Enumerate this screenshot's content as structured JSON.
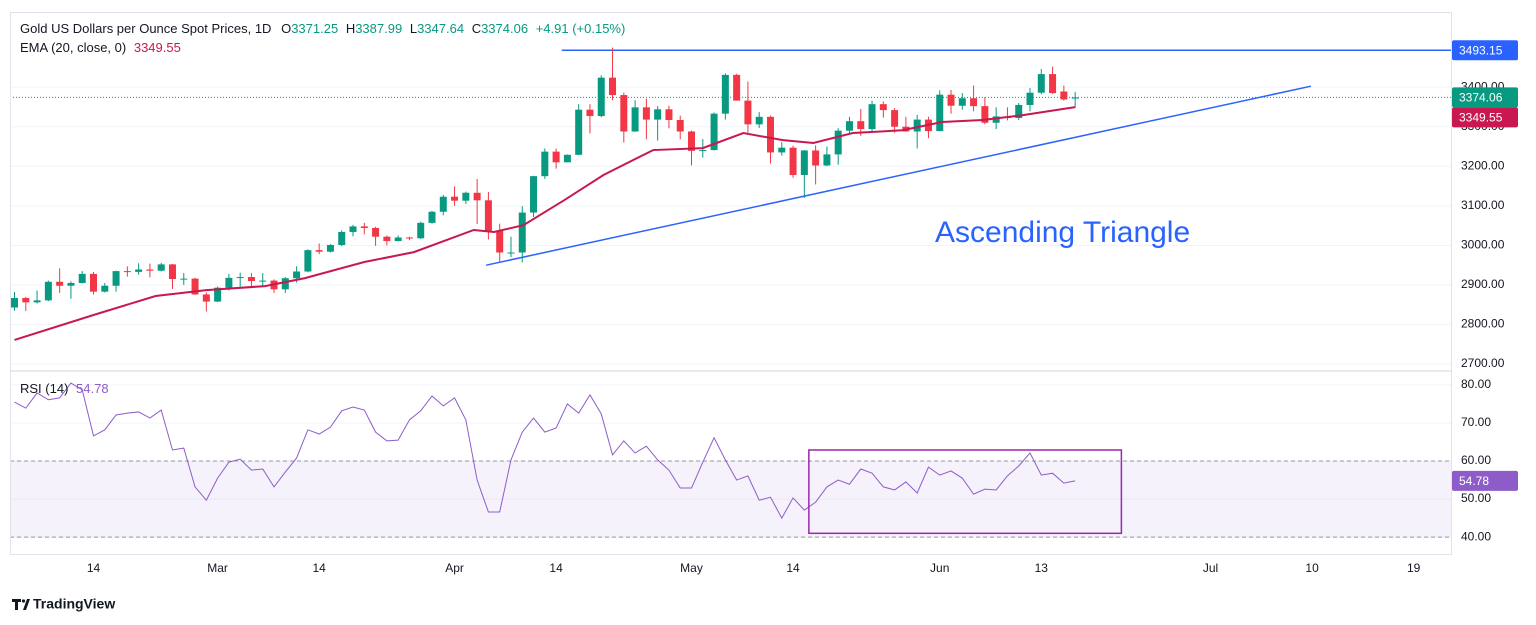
{
  "chart_data": {
    "type": "candlestick",
    "title": "Gold US Dollars per Ounce Spot Prices, 1D",
    "ohlc_keys": [
      "O",
      "H",
      "L",
      "C"
    ],
    "change_label": "+4.91 (+0.15%)",
    "up_color": "#089981",
    "down_color": "#f23645",
    "open": [
      2843,
      2867,
      2856,
      2861,
      2908,
      2898,
      2905,
      2928,
      2883,
      2898,
      2935,
      2933,
      2939,
      2936,
      2952,
      2915,
      2916,
      2876,
      2858,
      2893,
      2918,
      2920,
      2910,
      2911,
      2889,
      2917,
      2934,
      2988,
      2984,
      3001,
      3034,
      3048,
      3044,
      3022,
      3011,
      3020,
      3018,
      3057,
      3085,
      3123,
      3113,
      3133,
      3114,
      3037,
      2982,
      2982,
      3083,
      3175,
      3237,
      3210,
      3229,
      3343,
      3327,
      3424,
      3380,
      3288,
      3349,
      3318,
      3344,
      3317,
      3288,
      3239,
      3241,
      3333,
      3431,
      3366,
      3306,
      3325,
      3235,
      3247,
      3178,
      3240,
      3202,
      3230,
      3290,
      3314,
      3294,
      3357,
      3342,
      3300,
      3288,
      3318,
      3289,
      3381,
      3353,
      3372,
      3352,
      3310,
      3326,
      3322,
      3355,
      3386,
      3433,
      3389,
      3371.25
    ],
    "high": [
      2882,
      2870,
      2886,
      2911,
      2942,
      2909,
      2935,
      2933,
      2905,
      2936,
      2947,
      2955,
      2954,
      2956,
      2953,
      2930,
      2918,
      2881,
      2896,
      2928,
      2931,
      2930,
      2930,
      2914,
      2920,
      2947,
      2990,
      3005,
      3003,
      3038,
      3052,
      3057,
      3047,
      3025,
      3025,
      3022,
      3060,
      3087,
      3128,
      3149,
      3136,
      3168,
      3135,
      3055,
      3022,
      3099,
      3176,
      3245,
      3245,
      3230,
      3357,
      3357,
      3430,
      3500,
      3386,
      3367,
      3371,
      3352,
      3353,
      3328,
      3290,
      3269,
      3336,
      3435,
      3434,
      3414,
      3337,
      3328,
      3261,
      3252,
      3241,
      3253,
      3250,
      3296,
      3325,
      3345,
      3366,
      3364,
      3347,
      3325,
      3330,
      3325,
      3392,
      3393,
      3385,
      3404,
      3375,
      3349,
      3349,
      3360,
      3398,
      3446,
      3452,
      3404,
      3387.99
    ],
    "low": [
      2835,
      2834,
      2853,
      2859,
      2880,
      2865,
      2904,
      2876,
      2881,
      2883,
      2921,
      2926,
      2919,
      2934,
      2890,
      2900,
      2875,
      2833,
      2857,
      2886,
      2895,
      2895,
      2894,
      2880,
      2880,
      2906,
      2932,
      2978,
      2982,
      2998,
      3023,
      3028,
      2999,
      3000,
      3010,
      3013,
      3016,
      3055,
      3076,
      3100,
      3105,
      3054,
      3015,
      2957,
      2970,
      2957,
      3072,
      3168,
      3194,
      3210,
      3228,
      3283,
      3324,
      3367,
      3260,
      3287,
      3268,
      3265,
      3296,
      3268,
      3202,
      3222,
      3240,
      3318,
      3366,
      3285,
      3297,
      3207,
      3227,
      3171,
      3120,
      3154,
      3200,
      3204,
      3283,
      3277,
      3287,
      3323,
      3285,
      3287,
      3245,
      3271,
      3289,
      3333,
      3343,
      3339,
      3306,
      3294,
      3316,
      3317,
      3339,
      3382,
      3383,
      3366,
      3347.64
    ],
    "close": [
      2867,
      2856,
      2861,
      2908,
      2898,
      2905,
      2928,
      2883,
      2898,
      2935,
      2933,
      2939,
      2936,
      2952,
      2915,
      2916,
      2876,
      2858,
      2893,
      2918,
      2920,
      2910,
      2911,
      2889,
      2917,
      2934,
      2988,
      2984,
      3001,
      3034,
      3048,
      3044,
      3022,
      3011,
      3020,
      3018,
      3057,
      3085,
      3123,
      3113,
      3133,
      3114,
      3037,
      2982,
      2982,
      3083,
      3175,
      3237,
      3210,
      3229,
      3343,
      3327,
      3424,
      3380,
      3288,
      3349,
      3318,
      3344,
      3317,
      3288,
      3239,
      3241,
      3333,
      3431,
      3366,
      3306,
      3325,
      3235,
      3247,
      3178,
      3240,
      3202,
      3230,
      3290,
      3314,
      3294,
      3357,
      3342,
      3300,
      3288,
      3318,
      3289,
      3381,
      3353,
      3372,
      3352,
      3310,
      3326,
      3322,
      3355,
      3386,
      3433,
      3385,
      3369,
      3374.06
    ],
    "xlim": [
      -0.4,
      127.4
    ],
    "xticks": [
      {
        "value": 7,
        "label": "14"
      },
      {
        "value": 18,
        "label": "Mar"
      },
      {
        "value": 27,
        "label": "14"
      },
      {
        "value": 39,
        "label": "Apr"
      },
      {
        "value": 48,
        "label": "14"
      },
      {
        "value": 60,
        "label": "May"
      },
      {
        "value": 69,
        "label": "14"
      },
      {
        "value": 82,
        "label": "Jun"
      },
      {
        "value": 91,
        "label": "13"
      },
      {
        "value": 106,
        "label": "Jul"
      },
      {
        "value": 115,
        "label": "10"
      },
      {
        "value": 124,
        "label": "19"
      }
    ],
    "ylim": [
      2685,
      3590
    ],
    "yticks": [
      {
        "value": 2700,
        "label": "2700.00"
      },
      {
        "value": 2800,
        "label": "2800.00"
      },
      {
        "value": 2900,
        "label": "2900.00"
      },
      {
        "value": 3000,
        "label": "3000.00"
      },
      {
        "value": 3100,
        "label": "3100.00"
      },
      {
        "value": 3200,
        "label": "3200.00"
      },
      {
        "value": 3300,
        "label": "3300.00"
      },
      {
        "value": 3400,
        "label": "3400.00"
      }
    ],
    "grid": true,
    "ema": {
      "name": "EMA (20, close, 0)",
      "color": "#c8184f",
      "x": [
        0,
        7,
        12.5,
        17,
        22.2,
        25.7,
        31,
        35.4,
        40.7,
        42.5,
        45.1,
        48.7,
        52.2,
        56.6,
        61,
        64.6,
        68.1,
        70.8,
        74.3,
        78.7,
        82.2,
        85.8,
        89.3,
        94
      ],
      "values": [
        2761,
        2824,
        2872,
        2887,
        2897,
        2917,
        2958,
        2983,
        3039,
        3034,
        3051,
        3114,
        3178,
        3241,
        3246,
        3284,
        3266,
        3259,
        3284,
        3291,
        3312,
        3317,
        3329,
        3349.55
      ]
    },
    "hline": {
      "value": 3493.15,
      "x_start": 48.5,
      "color": "#2962ff"
    },
    "trendline": {
      "x": [
        41.8,
        114.9
      ],
      "values": [
        2950,
        3402.5
      ],
      "color": "#2962ff"
    },
    "annotation": "Ascending Triangle",
    "rsi": {
      "name": "RSI (14)",
      "color": "#8e5cc8",
      "values": [
        75.5,
        73.9,
        77.9,
        76.1,
        76.6,
        80.5,
        78.7,
        66.6,
        68.2,
        72.1,
        72.6,
        72.9,
        71.3,
        73.4,
        62.9,
        63.4,
        53.2,
        49.7,
        55.5,
        59.7,
        60.5,
        57.6,
        57.9,
        53.2,
        57.1,
        60.8,
        68.2,
        67.1,
        68.9,
        73.2,
        74.2,
        73.4,
        67.6,
        65.3,
        65.5,
        70.8,
        73.2,
        77.1,
        74.5,
        76.6,
        70.8,
        55.0,
        46.6,
        46.6,
        60.3,
        67.6,
        71.3,
        67.6,
        68.7,
        75.0,
        72.6,
        77.4,
        72.4,
        61.6,
        65.3,
        62.1,
        63.9,
        60.3,
        57.6,
        52.9,
        52.9,
        59.7,
        66.1,
        60.3,
        55.0,
        56.1,
        49.7,
        50.5,
        45.0,
        50.3,
        47.1,
        49.2,
        53.2,
        55.0,
        53.9,
        57.9,
        56.8,
        53.2,
        52.4,
        54.5,
        51.6,
        58.4,
        56.3,
        57.4,
        55.5,
        51.3,
        52.6,
        52.4,
        56.1,
        58.7,
        62.1,
        56.3,
        56.8,
        54.2,
        54.78
      ],
      "ylim": [
        35.3,
        83.4
      ],
      "yticks": [
        {
          "value": 40,
          "label": "40.00"
        },
        {
          "value": 50,
          "label": "50.00"
        },
        {
          "value": 60,
          "label": "60.00"
        },
        {
          "value": 70,
          "label": "70.00"
        },
        {
          "value": 80,
          "label": "80.00"
        }
      ],
      "levels": [
        40,
        60
      ],
      "box": {
        "x": [
          70.4,
          98.1
        ],
        "values": [
          41,
          62.9
        ],
        "color": "#9c27b0"
      }
    },
    "brand": "TradingView"
  }
}
